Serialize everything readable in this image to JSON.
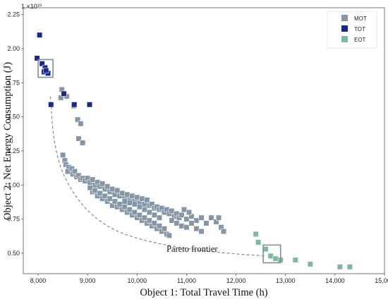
{
  "chart_data": {
    "type": "scatter",
    "xlabel": "Object 1: Total Travel Time (h)",
    "ylabel": "Object 2: Net Energy Consumption (J)",
    "y_scale_label": "1 ×10¹⁰",
    "xlim": [
      7700,
      15000
    ],
    "ylim": [
      0.35,
      2.3
    ],
    "x_ticks": [
      8000,
      9000,
      10000,
      11000,
      12000,
      13000,
      14000,
      15000
    ],
    "x_tick_labels": [
      "8,000",
      "9,000",
      "10,000",
      "11,000",
      "12,000",
      "13,000",
      "14,000",
      "15,000"
    ],
    "y_ticks": [
      0.5,
      0.75,
      1.0,
      1.25,
      1.5,
      1.75,
      2.0,
      2.25
    ],
    "y_tick_labels": [
      "0.50",
      "0.75",
      "1.00",
      "1.25",
      "1.50",
      "1.75",
      "2.00",
      "2.25"
    ],
    "grid": false,
    "legend_position": "top-right",
    "annotation": "Pareto frontier",
    "series": [
      {
        "name": "MOT",
        "color": "#8596a7",
        "points": [
          [
            8480,
            1.7
          ],
          [
            8530,
            1.67
          ],
          [
            8460,
            1.64
          ],
          [
            8580,
            1.65
          ],
          [
            8720,
            1.58
          ],
          [
            8800,
            1.48
          ],
          [
            8860,
            1.45
          ],
          [
            8820,
            1.34
          ],
          [
            8900,
            1.31
          ],
          [
            8500,
            1.22
          ],
          [
            8540,
            1.18
          ],
          [
            8560,
            1.15
          ],
          [
            8620,
            1.13
          ],
          [
            8600,
            1.1
          ],
          [
            8680,
            1.12
          ],
          [
            8700,
            1.08
          ],
          [
            8740,
            1.1
          ],
          [
            8780,
            1.06
          ],
          [
            8820,
            1.07
          ],
          [
            8860,
            1.04
          ],
          [
            8900,
            1.05
          ],
          [
            8950,
            1.03
          ],
          [
            9000,
            1.05
          ],
          [
            9050,
            1.02
          ],
          [
            9100,
            1.04
          ],
          [
            9150,
            1.0
          ],
          [
            9200,
            1.02
          ],
          [
            9250,
            0.99
          ],
          [
            9300,
            1.01
          ],
          [
            9350,
            0.97
          ],
          [
            9400,
            0.99
          ],
          [
            9450,
            0.95
          ],
          [
            9500,
            0.97
          ],
          [
            9550,
            0.93
          ],
          [
            9600,
            0.96
          ],
          [
            9650,
            0.92
          ],
          [
            9700,
            0.94
          ],
          [
            9750,
            0.9
          ],
          [
            9800,
            0.93
          ],
          [
            9850,
            0.89
          ],
          [
            9900,
            0.92
          ],
          [
            9950,
            0.88
          ],
          [
            10000,
            0.91
          ],
          [
            10050,
            0.87
          ],
          [
            10100,
            0.9
          ],
          [
            10150,
            0.86
          ],
          [
            10200,
            0.89
          ],
          [
            10250,
            0.85
          ],
          [
            10300,
            0.86
          ],
          [
            10350,
            0.83
          ],
          [
            10400,
            0.84
          ],
          [
            10450,
            0.82
          ],
          [
            10500,
            0.83
          ],
          [
            10550,
            0.8
          ],
          [
            10600,
            0.82
          ],
          [
            10650,
            0.79
          ],
          [
            10700,
            0.81
          ],
          [
            10750,
            0.77
          ],
          [
            10800,
            0.79
          ],
          [
            10850,
            0.76
          ],
          [
            10900,
            0.78
          ],
          [
            11000,
            0.75
          ],
          [
            11100,
            0.77
          ],
          [
            11200,
            0.74
          ],
          [
            11300,
            0.76
          ],
          [
            11400,
            0.72
          ],
          [
            11500,
            0.76
          ],
          [
            11600,
            0.73
          ],
          [
            11700,
            0.69
          ],
          [
            11750,
            0.66
          ],
          [
            11650,
            0.76
          ],
          [
            9100,
            0.95
          ],
          [
            9200,
            0.92
          ],
          [
            9300,
            0.9
          ],
          [
            9400,
            0.88
          ],
          [
            9500,
            0.85
          ],
          [
            9600,
            0.84
          ],
          [
            9700,
            0.82
          ],
          [
            9800,
            0.8
          ],
          [
            9900,
            0.78
          ],
          [
            10000,
            0.76
          ],
          [
            10100,
            0.74
          ],
          [
            10200,
            0.72
          ],
          [
            10300,
            0.7
          ],
          [
            10400,
            0.68
          ],
          [
            10500,
            0.66
          ],
          [
            10600,
            0.64
          ],
          [
            10650,
            0.63
          ],
          [
            9050,
            0.98
          ],
          [
            9150,
            0.96
          ],
          [
            9250,
            0.94
          ],
          [
            9350,
            0.92
          ],
          [
            9450,
            0.9
          ],
          [
            9550,
            0.88
          ],
          [
            9650,
            0.86
          ],
          [
            9750,
            0.84
          ],
          [
            9850,
            0.82
          ],
          [
            9950,
            0.8
          ],
          [
            10050,
            0.78
          ],
          [
            10150,
            0.76
          ],
          [
            10250,
            0.74
          ],
          [
            10350,
            0.72
          ],
          [
            10450,
            0.7
          ],
          [
            10550,
            0.68
          ],
          [
            10700,
            0.74
          ],
          [
            10800,
            0.72
          ],
          [
            10900,
            0.7
          ],
          [
            11000,
            0.69
          ],
          [
            11100,
            0.72
          ],
          [
            11200,
            0.68
          ],
          [
            11300,
            0.66
          ],
          [
            10950,
            0.82
          ],
          [
            11050,
            0.8
          ],
          [
            10450,
            0.76
          ],
          [
            10350,
            0.78
          ],
          [
            10250,
            0.8
          ],
          [
            10150,
            0.82
          ],
          [
            10050,
            0.84
          ],
          [
            9950,
            0.86
          ],
          [
            9850,
            0.87
          ],
          [
            9750,
            0.88
          ]
        ]
      },
      {
        "name": "TOT",
        "color": "#172a8a",
        "points": [
          [
            8030,
            2.1
          ],
          [
            7980,
            1.93
          ],
          [
            8080,
            1.89
          ],
          [
            8140,
            1.86
          ],
          [
            8120,
            1.83
          ],
          [
            8200,
            1.82
          ],
          [
            8160,
            1.84
          ],
          [
            8260,
            1.59
          ],
          [
            8520,
            1.67
          ],
          [
            8730,
            1.59
          ],
          [
            9040,
            1.59
          ]
        ]
      },
      {
        "name": "EOT",
        "color": "#7db99a",
        "points": [
          [
            12400,
            0.64
          ],
          [
            12450,
            0.58
          ],
          [
            12600,
            0.53
          ],
          [
            12700,
            0.48
          ],
          [
            12800,
            0.46
          ],
          [
            12900,
            0.45
          ],
          [
            13200,
            0.45
          ],
          [
            13500,
            0.42
          ],
          [
            14100,
            0.4
          ],
          [
            14300,
            0.4
          ]
        ]
      }
    ],
    "frontier_curve": [
      [
        8250,
        1.65
      ],
      [
        8300,
        1.4
      ],
      [
        8400,
        1.2
      ],
      [
        8550,
        1.05
      ],
      [
        8800,
        0.9
      ],
      [
        9100,
        0.78
      ],
      [
        9500,
        0.68
      ],
      [
        10000,
        0.61
      ],
      [
        10600,
        0.56
      ],
      [
        11300,
        0.52
      ],
      [
        12000,
        0.495
      ],
      [
        12600,
        0.48
      ]
    ],
    "highlight_boxes": [
      {
        "x": [
          8000,
          8300
        ],
        "y": [
          1.79,
          1.92
        ]
      },
      {
        "x": [
          12550,
          12900
        ],
        "y": [
          0.43,
          0.56
        ]
      }
    ]
  }
}
